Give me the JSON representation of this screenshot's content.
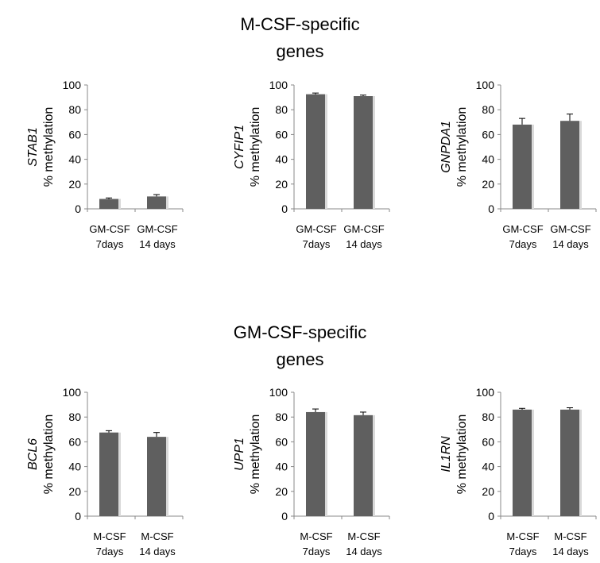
{
  "sections": [
    {
      "title_line1": "M-CSF-specific",
      "title_line2": "genes"
    },
    {
      "title_line1": "GM-CSF-specific",
      "title_line2": "genes"
    }
  ],
  "chart_data": [
    {
      "type": "bar",
      "gene": "STAB1",
      "ylabel": "% methylation",
      "ylim": [
        0,
        100
      ],
      "yticks": [
        0,
        20,
        40,
        60,
        80,
        100
      ],
      "categories": [
        [
          "GM-CSF",
          "7days"
        ],
        [
          "GM-CSF",
          "14 days"
        ]
      ],
      "values": [
        8,
        10
      ],
      "errors": [
        0.8,
        1.5
      ],
      "bar_color": "#5f5f5f"
    },
    {
      "type": "bar",
      "gene": "CYFIP1",
      "ylabel": "% methylation",
      "ylim": [
        0,
        100
      ],
      "yticks": [
        0,
        20,
        40,
        60,
        80,
        100
      ],
      "categories": [
        [
          "GM-CSF",
          "7days"
        ],
        [
          "GM-CSF",
          "14 days"
        ]
      ],
      "values": [
        92.5,
        91
      ],
      "errors": [
        1,
        0.8
      ],
      "bar_color": "#5f5f5f"
    },
    {
      "type": "bar",
      "gene": "GNPDA1",
      "ylabel": "% methylation",
      "ylim": [
        0,
        100
      ],
      "yticks": [
        0,
        20,
        40,
        60,
        80,
        100
      ],
      "categories": [
        [
          "GM-CSF",
          "7days"
        ],
        [
          "GM-CSF",
          "14 days"
        ]
      ],
      "values": [
        68,
        71
      ],
      "errors": [
        5,
        5.5
      ],
      "bar_color": "#5f5f5f"
    },
    {
      "type": "bar",
      "gene": "BCL6",
      "ylabel": "% methylation",
      "ylim": [
        0,
        100
      ],
      "yticks": [
        0,
        20,
        40,
        60,
        80,
        100
      ],
      "categories": [
        [
          "M-CSF",
          "7days"
        ],
        [
          "M-CSF",
          "14 days"
        ]
      ],
      "values": [
        67.5,
        64
      ],
      "errors": [
        1.5,
        3.5
      ],
      "bar_color": "#5f5f5f"
    },
    {
      "type": "bar",
      "gene": "UPP1",
      "ylabel": "% methylation",
      "ylim": [
        0,
        100
      ],
      "yticks": [
        0,
        20,
        40,
        60,
        80,
        100
      ],
      "categories": [
        [
          "M-CSF",
          "7days"
        ],
        [
          "M-CSF",
          "14 days"
        ]
      ],
      "values": [
        84,
        81.5
      ],
      "errors": [
        2.5,
        2.5
      ],
      "bar_color": "#5f5f5f"
    },
    {
      "type": "bar",
      "gene": "IL1RN",
      "ylabel": "% methylation",
      "ylim": [
        0,
        100
      ],
      "yticks": [
        0,
        20,
        40,
        60,
        80,
        100
      ],
      "categories": [
        [
          "M-CSF",
          "7days"
        ],
        [
          "M-CSF",
          "14 days"
        ]
      ],
      "values": [
        86,
        86
      ],
      "errors": [
        1,
        1.5
      ],
      "bar_color": "#5f5f5f"
    }
  ]
}
